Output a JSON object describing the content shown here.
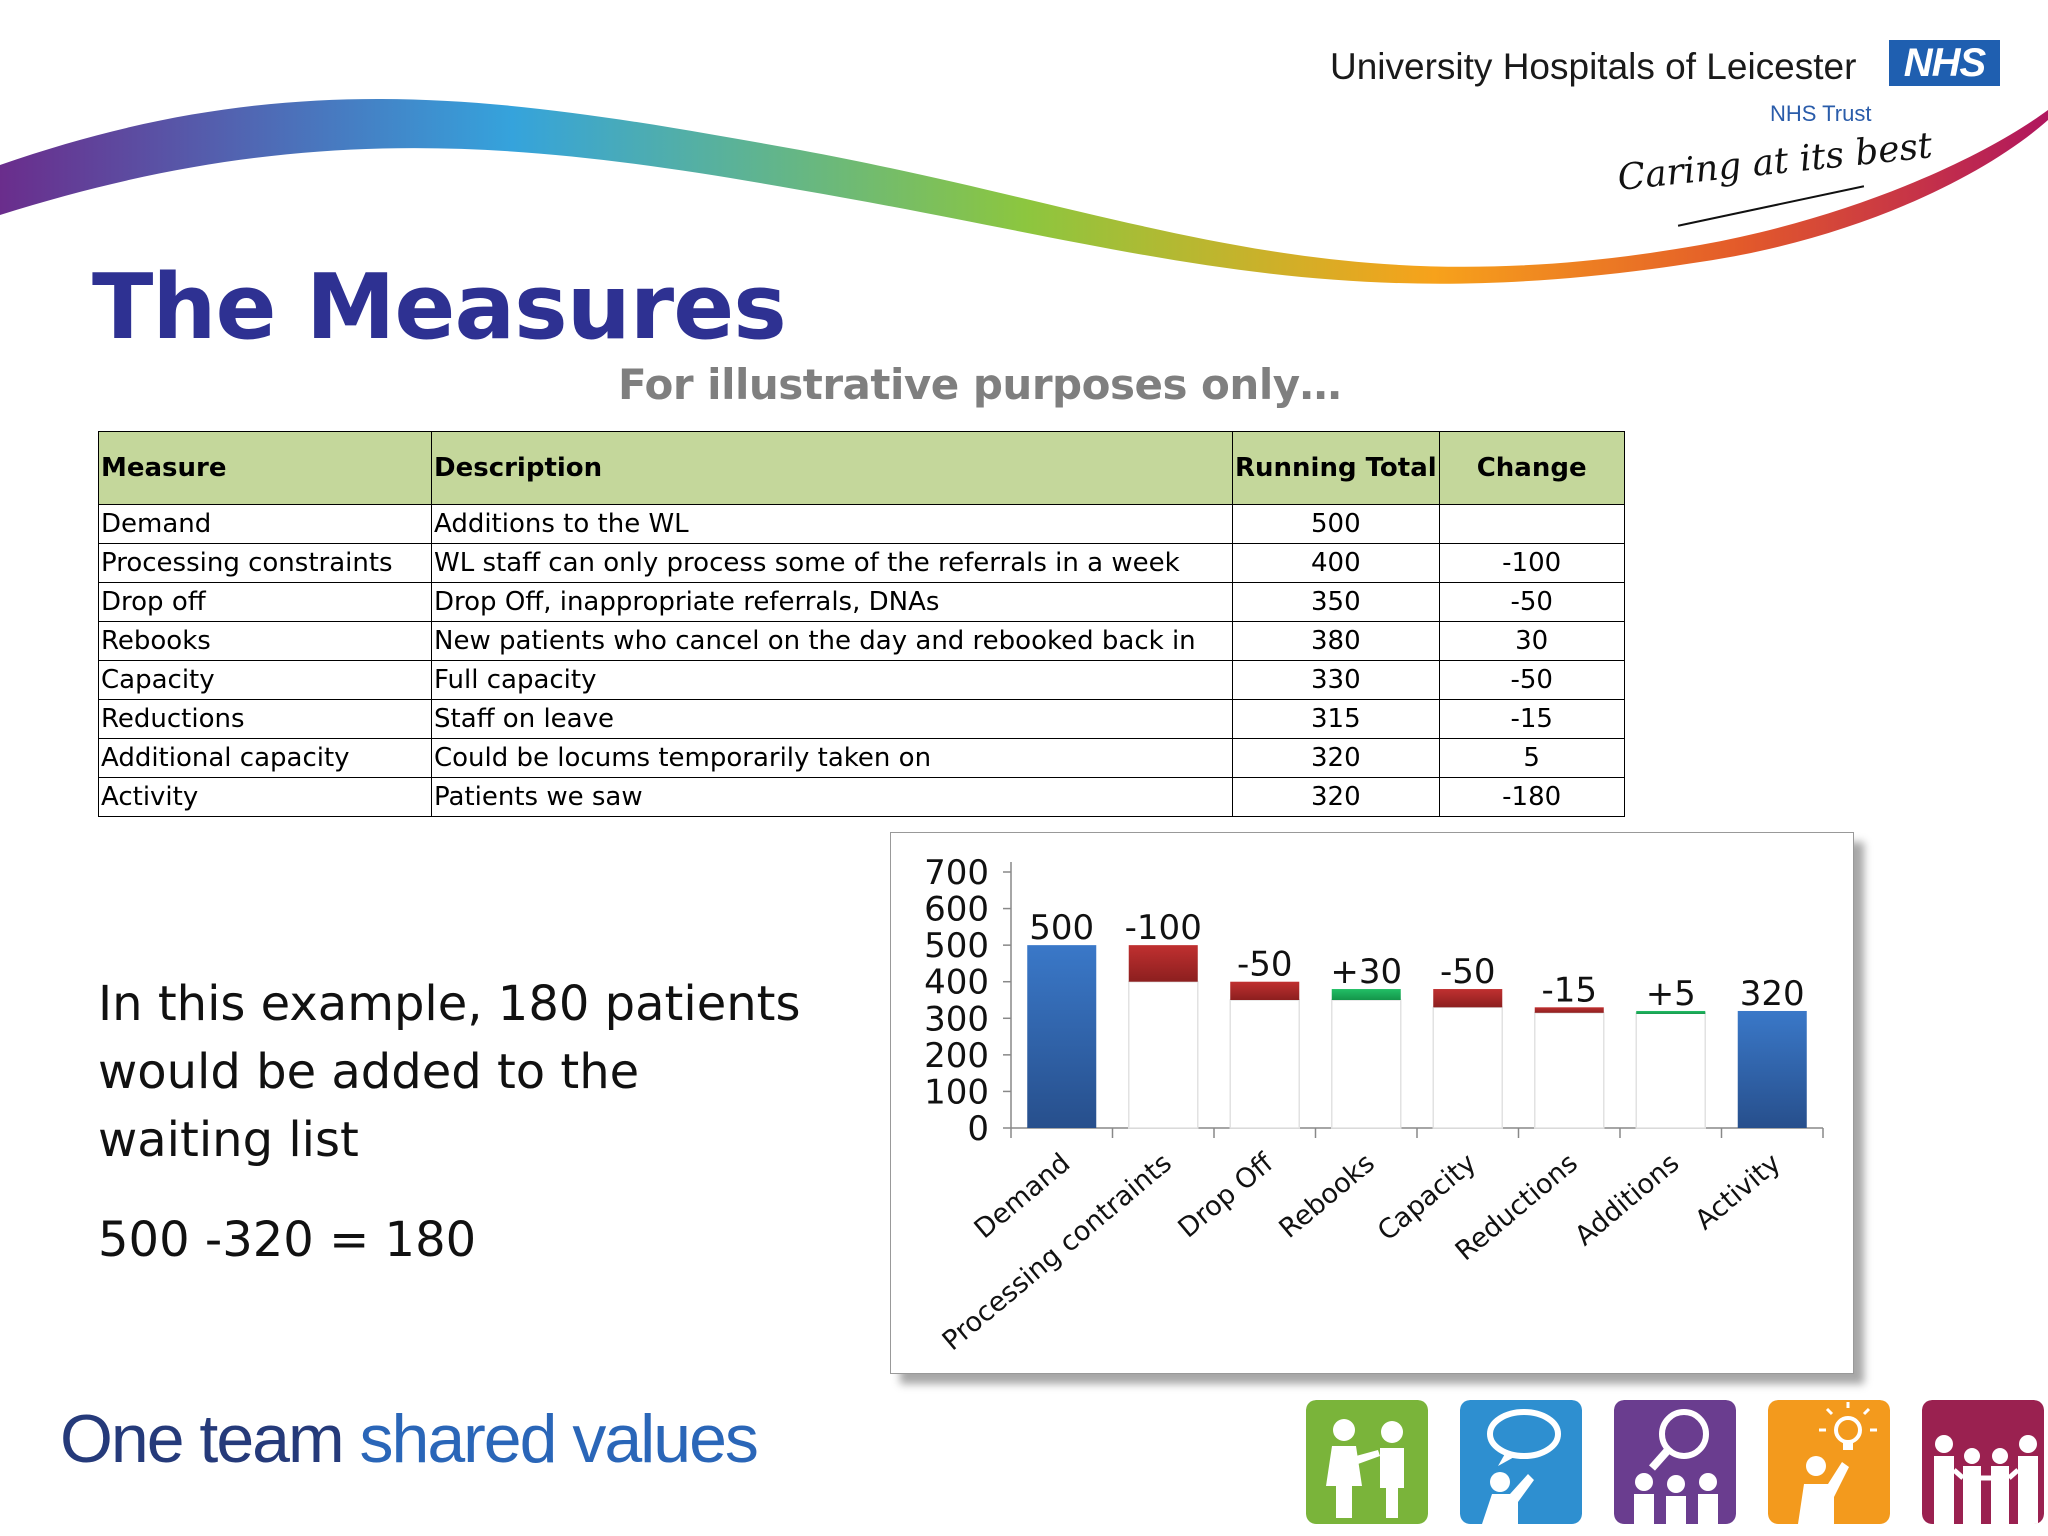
{
  "header": {
    "organisation": "University Hospitals of Leicester",
    "logo_text": "NHS",
    "trust_label": "NHS Trust",
    "tagline": "Caring at its best"
  },
  "slide": {
    "title": "The Measures",
    "subtitle": "For illustrative purposes only…"
  },
  "table": {
    "headers": [
      "Measure",
      "Description",
      "Running Total",
      "Change"
    ],
    "rows": [
      {
        "measure": "Demand",
        "description": "Additions to the WL",
        "running_total": "500",
        "change": ""
      },
      {
        "measure": "Processing constraints",
        "description": "WL staff can only process some of the referrals in a week",
        "running_total": "400",
        "change": "-100"
      },
      {
        "measure": "Drop off",
        "description": "Drop Off, inappropriate referrals, DNAs",
        "running_total": "350",
        "change": "-50"
      },
      {
        "measure": "Rebooks",
        "description": "New patients who cancel on the day and rebooked back in",
        "running_total": "380",
        "change": "30"
      },
      {
        "measure": "Capacity",
        "description": "Full capacity",
        "running_total": "330",
        "change": "-50"
      },
      {
        "measure": "Reductions",
        "description": "Staff on leave",
        "running_total": "315",
        "change": "-15"
      },
      {
        "measure": "Additional capacity",
        "description": "Could be locums temporarily taken on",
        "running_total": "320",
        "change": "5"
      },
      {
        "measure": "Activity",
        "description": "Patients we saw",
        "running_total": "320",
        "change": "-180"
      }
    ]
  },
  "explanation": {
    "text": "In this example, 180 patients would be added to the waiting list",
    "equation": "500 -320 = 180"
  },
  "chart_data": {
    "type": "bar",
    "subtype": "waterfall",
    "categories": [
      "Demand",
      "Processing contraints",
      "Drop Off",
      "Rebooks",
      "Capacity",
      "Reductions",
      "Additions",
      "Activity"
    ],
    "bars": [
      {
        "kind": "total",
        "base": 0,
        "top": 500,
        "label": "500"
      },
      {
        "kind": "decrease",
        "base": 400,
        "top": 500,
        "label": "-100"
      },
      {
        "kind": "decrease",
        "base": 350,
        "top": 400,
        "label": "-50"
      },
      {
        "kind": "increase",
        "base": 350,
        "top": 380,
        "label": "+30"
      },
      {
        "kind": "decrease",
        "base": 330,
        "top": 380,
        "label": "-50"
      },
      {
        "kind": "decrease",
        "base": 315,
        "top": 330,
        "label": "-15"
      },
      {
        "kind": "increase",
        "base": 315,
        "top": 320,
        "label": "+5"
      },
      {
        "kind": "total",
        "base": 0,
        "top": 320,
        "label": "320"
      }
    ],
    "yticks": [
      0,
      100,
      200,
      300,
      400,
      500,
      600,
      700
    ],
    "ylim": [
      0,
      700
    ],
    "grid": false,
    "legend": "none",
    "colors": {
      "total": "#2e62a8",
      "decrease": "#a82828",
      "increase": "#1aaa55"
    }
  },
  "footer": {
    "slogan_part1": "One team",
    "slogan_part2": "shared values",
    "value_icons": [
      {
        "name": "people-pointing-icon",
        "color": "#7ab43a"
      },
      {
        "name": "speech-bubble-person-icon",
        "color": "#2e8fd0"
      },
      {
        "name": "magnifier-group-icon",
        "color": "#6a3d8f"
      },
      {
        "name": "lightbulb-person-icon",
        "color": "#f39a1d"
      },
      {
        "name": "family-group-icon",
        "color": "#9a2150"
      }
    ]
  }
}
